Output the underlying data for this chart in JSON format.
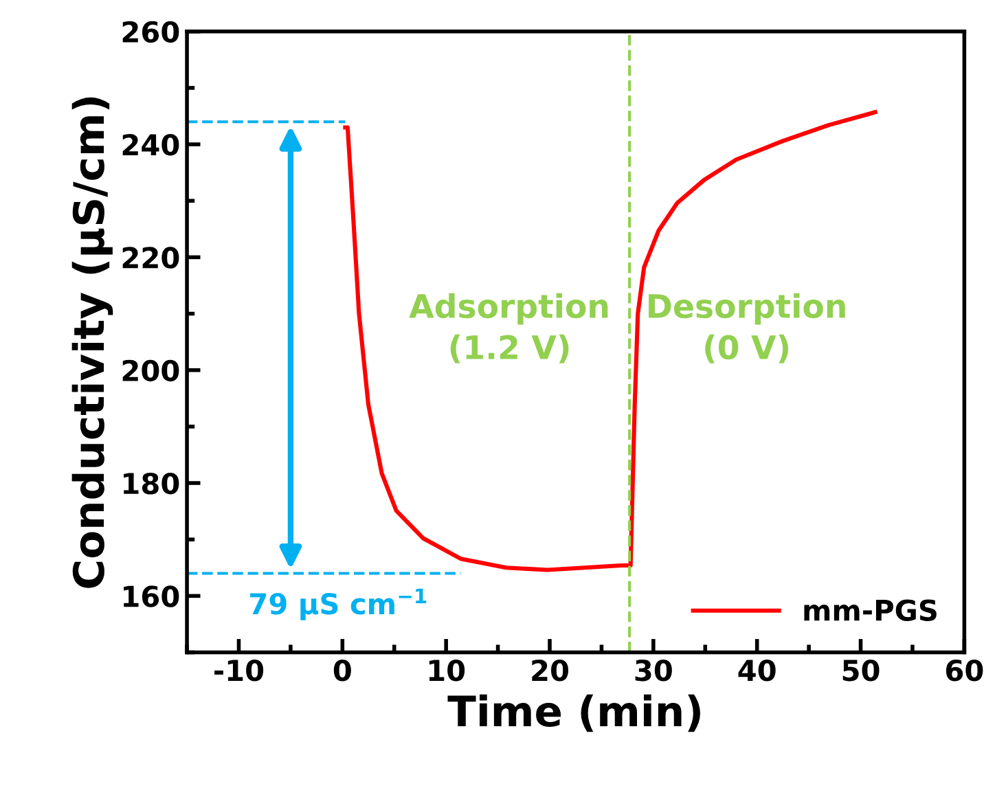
{
  "chart_data": {
    "type": "line",
    "xlabel": "Time (min)",
    "ylabel": "Conductivity (µS/cm)",
    "series": [
      {
        "name": "mm-PGS",
        "color": "#ff0000",
        "x": [
          0.27,
          0.5,
          1.07,
          1.6,
          2.5,
          3.8,
          5.2,
          7.8,
          11.4,
          15.8,
          19.8,
          26.9,
          27.8,
          28.2,
          28.5,
          29.1,
          30.5,
          32.3,
          34.9,
          38.0,
          42.5,
          46.9,
          51.4
        ],
        "values": [
          243,
          243,
          226.3,
          210,
          193.9,
          181.7,
          175.1,
          170.2,
          166.6,
          165,
          164.6,
          165.4,
          165.4,
          193.8,
          210,
          218.2,
          224.7,
          229.6,
          233.7,
          237.3,
          240.6,
          243.4,
          245.7
        ]
      }
    ],
    "xlim": [
      -15,
      60
    ],
    "xticks": [
      -10,
      0,
      10,
      20,
      30,
      40,
      50,
      60
    ],
    "ylim": [
      150,
      260
    ],
    "yticks": [
      160,
      180,
      200,
      220,
      240,
      260
    ],
    "ref_lines": [
      {
        "axis": "x",
        "value": 27.7,
        "color": "#92d050",
        "line_style": "dashed"
      },
      {
        "axis": "y",
        "value": 244,
        "color": "#00b0f0",
        "line_style": "dashed"
      },
      {
        "axis": "y",
        "value": 164,
        "color": "#00b0f0",
        "line_style": "dashed"
      }
    ],
    "annotations": [
      {
        "text": "79 µS cm$^{−1}$",
        "x": -5,
        "y": 164
      },
      "Adsorption\n(1.2 V)",
      "Desorption\n(0 V)"
    ],
    "legend": "bottom right",
    "grid": false,
    "marker": "none",
    "line_style": "solid"
  }
}
